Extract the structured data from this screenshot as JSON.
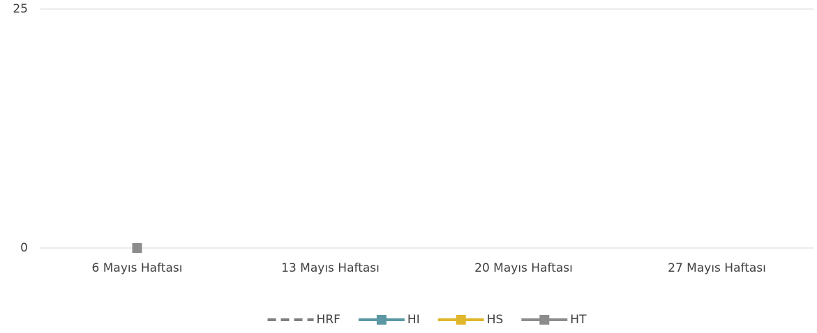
{
  "chart_data": {
    "type": "line",
    "categories": [
      "6 Mayıs Haftası",
      "13 Mayıs Haftası",
      "20 Mayıs Haftası",
      "27 Mayıs Haftası"
    ],
    "series": [
      {
        "name": "HRF",
        "color": "#7f7f7f",
        "dashed": true,
        "values": [
          null,
          null,
          null,
          null
        ]
      },
      {
        "name": "HI",
        "color": "#5b98a3",
        "marker": "square",
        "values": [
          null,
          null,
          null,
          null
        ]
      },
      {
        "name": "HS",
        "color": "#e0b62a",
        "marker": "square",
        "values": [
          null,
          null,
          null,
          null
        ]
      },
      {
        "name": "HT",
        "color": "#8c8c8c",
        "marker": "square",
        "values": [
          0,
          null,
          null,
          null
        ]
      }
    ],
    "ylim": [
      0,
      25
    ],
    "yticks": [
      0,
      25
    ],
    "grid": true,
    "legend": "bottom"
  }
}
